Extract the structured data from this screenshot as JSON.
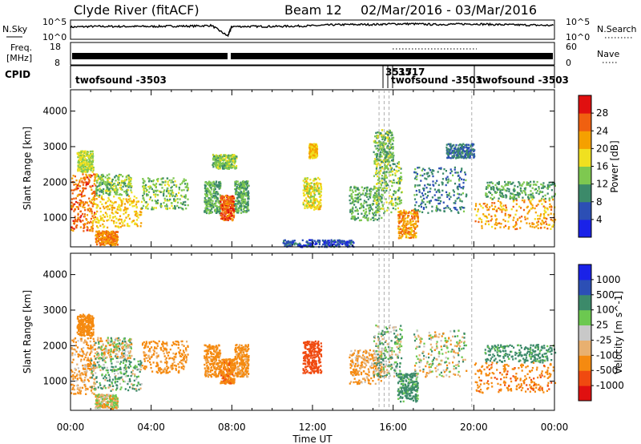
{
  "header": {
    "station": "Clyde River (fitACF)",
    "beam": "Beam 12",
    "dates": "02/Mar/2016 - 03/Mar/2016"
  },
  "nsky_panel": {
    "left_label": "N.Sky",
    "left_ticks": [
      "10^5",
      "10^0"
    ],
    "right_label": "N.Search",
    "right_ticks": [
      "10^5",
      "10^0"
    ]
  },
  "freq_panel": {
    "left_label": "Freq.",
    "left_unit": "[MHz]",
    "left_ticks": [
      18,
      8
    ],
    "right_label": "Nave",
    "right_ticks": [
      60,
      0
    ]
  },
  "cpid_panel": {
    "label": "CPID",
    "entries": [
      {
        "text": "twofsound -3503",
        "start_hour": 0.0
      },
      {
        "text": "3517",
        "start_hour": 15.35
      },
      {
        "text": "3517",
        "start_hour": 15.6
      },
      {
        "text": "twofsound -3503",
        "start_hour": 15.85
      },
      {
        "text": "twofsound -3503",
        "start_hour": 19.9
      }
    ]
  },
  "colors": {
    "power": [
      "#1a22e8",
      "#2c4fb5",
      "#3c8a6a",
      "#7ec850",
      "#f0e020",
      "#f5a000",
      "#f06010",
      "#e01010"
    ],
    "velocity": [
      "#e01010",
      "#f04a10",
      "#f58a10",
      "#e8b070",
      "#c8c8c8",
      "#6cc850",
      "#3c8a6a",
      "#2c4fb5",
      "#1a22e8"
    ]
  },
  "chart_data": [
    {
      "type": "line",
      "name": "N.Sky / N.Search",
      "x": [
        0,
        1,
        2,
        3,
        4,
        5,
        6,
        7,
        7.8,
        8,
        9,
        10,
        11,
        12,
        13,
        14,
        15,
        16,
        17,
        18,
        19,
        20,
        21,
        22,
        23,
        24
      ],
      "y_log10": [
        3.3,
        3.5,
        3.5,
        3.5,
        3.5,
        3.6,
        3.6,
        3.8,
        0.5,
        3.5,
        3.5,
        3.5,
        3.6,
        3.7,
        4.0,
        4.1,
        4.1,
        4.3,
        4.3,
        4.1,
        4.2,
        4.3,
        4.1,
        4.0,
        3.9,
        3.8
      ],
      "ylim": [
        0,
        5
      ],
      "xlim": [
        0,
        24
      ]
    },
    {
      "type": "line",
      "name": "Frequency / Nave",
      "frequency_mhz_range": [
        10,
        11
      ],
      "nave_range": [
        0,
        60
      ],
      "x_gap_hour": 7.9
    },
    {
      "type": "heatmap",
      "title": "",
      "xlabel": "Time UT",
      "ylabel": "Slant Range [km]",
      "x_ticks": [
        "00:00",
        "04:00",
        "08:00",
        "12:00",
        "16:00",
        "20:00",
        "00:00"
      ],
      "x_tick_hours": [
        0,
        4,
        8,
        12,
        16,
        20,
        24
      ],
      "y_ticks": [
        1000,
        2000,
        3000,
        4000
      ],
      "ylim": [
        180,
        4600
      ],
      "xlim": [
        0,
        24
      ],
      "colorbar": {
        "label": "Power [dB]",
        "ticks": [
          4,
          8,
          12,
          16,
          20,
          24,
          28
        ],
        "range": [
          0,
          32
        ]
      },
      "dashed_lines_hours": [
        15.3,
        15.55,
        15.8,
        19.9
      ],
      "regions": [
        {
          "t0": 0.0,
          "t1": 1.2,
          "r0": 650,
          "r1": 2250,
          "value": 25
        },
        {
          "t0": 0.3,
          "t1": 1.1,
          "r0": 2300,
          "r1": 2900,
          "value": 16
        },
        {
          "t0": 1.0,
          "t1": 3.5,
          "r0": 750,
          "r1": 1650,
          "value": 20
        },
        {
          "t0": 1.2,
          "t1": 3.0,
          "r0": 1650,
          "r1": 2250,
          "value": 14
        },
        {
          "t0": 3.5,
          "t1": 5.8,
          "r0": 1250,
          "r1": 2150,
          "value": 14
        },
        {
          "t0": 1.2,
          "t1": 2.3,
          "r0": 250,
          "r1": 650,
          "value": 24
        },
        {
          "t0": 6.6,
          "t1": 7.4,
          "r0": 1150,
          "r1": 2050,
          "value": 12
        },
        {
          "t0": 7.4,
          "t1": 8.1,
          "r0": 950,
          "r1": 1650,
          "value": 27
        },
        {
          "t0": 8.1,
          "t1": 8.8,
          "r0": 1150,
          "r1": 2050,
          "value": 12
        },
        {
          "t0": 7.0,
          "t1": 8.2,
          "r0": 2400,
          "r1": 2800,
          "value": 14
        },
        {
          "t0": 11.5,
          "t1": 12.4,
          "r0": 1250,
          "r1": 2150,
          "value": 18
        },
        {
          "t0": 11.8,
          "t1": 12.2,
          "r0": 2700,
          "r1": 3100,
          "value": 20
        },
        {
          "t0": 13.8,
          "t1": 15.4,
          "r0": 950,
          "r1": 1900,
          "value": 12
        },
        {
          "t0": 15.0,
          "t1": 16.4,
          "r0": 1150,
          "r1": 2600,
          "value": 14
        },
        {
          "t0": 15.0,
          "t1": 16.0,
          "r0": 2600,
          "r1": 3500,
          "value": 13
        },
        {
          "t0": 16.2,
          "t1": 17.2,
          "r0": 450,
          "r1": 1250,
          "value": 23
        },
        {
          "t0": 17.0,
          "t1": 19.6,
          "r0": 1150,
          "r1": 2450,
          "value": 9
        },
        {
          "t0": 18.6,
          "t1": 20.0,
          "r0": 2700,
          "r1": 3100,
          "value": 8
        },
        {
          "t0": 20.0,
          "t1": 24.0,
          "r0": 700,
          "r1": 1550,
          "value": 22
        },
        {
          "t0": 20.5,
          "t1": 24.0,
          "r0": 1550,
          "r1": 2050,
          "value": 12
        },
        {
          "t0": 10.5,
          "t1": 14.0,
          "r0": 200,
          "r1": 400,
          "value": 6
        }
      ]
    },
    {
      "type": "heatmap",
      "title": "",
      "xlabel": "Time UT",
      "ylabel": "Slant Range [km]",
      "x_ticks": [
        "00:00",
        "04:00",
        "08:00",
        "12:00",
        "16:00",
        "20:00",
        "00:00"
      ],
      "x_tick_hours": [
        0,
        4,
        8,
        12,
        16,
        20,
        24
      ],
      "y_ticks": [
        1000,
        2000,
        3000,
        4000
      ],
      "ylim": [
        180,
        4600
      ],
      "xlim": [
        0,
        24
      ],
      "colorbar": {
        "label": "Velocity [m s^-1]",
        "ticks": [
          1000,
          500,
          100,
          25,
          -25,
          -100,
          -500,
          -1000
        ]
      },
      "dashed_lines_hours": [
        15.3,
        15.55,
        15.8,
        19.9
      ],
      "regions": [
        {
          "t0": 0.0,
          "t1": 1.2,
          "r0": 650,
          "r1": 2250,
          "value": -150
        },
        {
          "t0": 0.3,
          "t1": 1.1,
          "r0": 2300,
          "r1": 2900,
          "value": -300
        },
        {
          "t0": 1.0,
          "t1": 3.5,
          "r0": 750,
          "r1": 1650,
          "value": 80
        },
        {
          "t0": 1.2,
          "t1": 3.0,
          "r0": 1650,
          "r1": 2250,
          "value": 0
        },
        {
          "t0": 3.5,
          "t1": 5.8,
          "r0": 1250,
          "r1": 2150,
          "value": -200
        },
        {
          "t0": 1.2,
          "t1": 2.3,
          "r0": 250,
          "r1": 650,
          "value": -50
        },
        {
          "t0": 6.6,
          "t1": 7.4,
          "r0": 1150,
          "r1": 2050,
          "value": -200
        },
        {
          "t0": 7.4,
          "t1": 8.1,
          "r0": 950,
          "r1": 1650,
          "value": -400
        },
        {
          "t0": 8.1,
          "t1": 8.8,
          "r0": 1150,
          "r1": 2050,
          "value": -200
        },
        {
          "t0": 11.5,
          "t1": 12.4,
          "r0": 1250,
          "r1": 2150,
          "value": -700
        },
        {
          "t0": 13.8,
          "t1": 15.4,
          "r0": 950,
          "r1": 1900,
          "value": -150
        },
        {
          "t0": 15.0,
          "t1": 16.4,
          "r0": 1150,
          "r1": 2600,
          "value": 60
        },
        {
          "t0": 16.2,
          "t1": 17.2,
          "r0": 450,
          "r1": 1250,
          "value": 200
        },
        {
          "t0": 17.0,
          "t1": 19.6,
          "r0": 1150,
          "r1": 2450,
          "value": 0
        },
        {
          "t0": 20.0,
          "t1": 24.0,
          "r0": 700,
          "r1": 1550,
          "value": -400
        },
        {
          "t0": 20.5,
          "t1": 24.0,
          "r0": 1550,
          "r1": 2050,
          "value": 200
        }
      ]
    }
  ]
}
